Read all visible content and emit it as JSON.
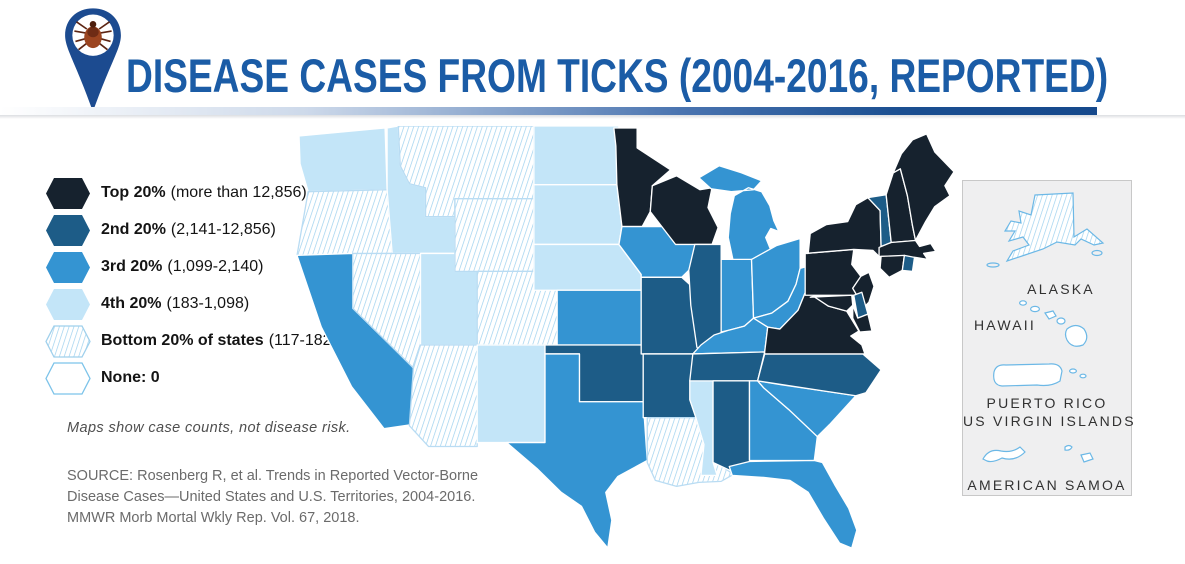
{
  "header": {
    "title": "DISEASE CASES FROM TICKS (2004-2016, REPORTED)",
    "icon": "tick-location-pin"
  },
  "legend": {
    "items": [
      {
        "id": "q1",
        "bold": "Top 20%",
        "range": "(more than 12,856)",
        "fill": "#16222e",
        "style": "solid"
      },
      {
        "id": "q2",
        "bold": "2nd 20%",
        "range": "(2,141-12,856)",
        "fill": "#1d5c87",
        "style": "solid"
      },
      {
        "id": "q3",
        "bold": "3rd 20%",
        "range": "(1,099-2,140)",
        "fill": "#3494d2",
        "style": "solid"
      },
      {
        "id": "q4",
        "bold": "4th 20%",
        "range": "(183-1,098)",
        "fill": "#c3e5f8",
        "style": "solid"
      },
      {
        "id": "q5",
        "bold": "Bottom 20% of states",
        "range": "(117-182)",
        "fill": "hatch",
        "style": "hatch"
      },
      {
        "id": "q0",
        "bold": "None: 0",
        "range": "",
        "fill": "#ffffff",
        "style": "outline"
      }
    ]
  },
  "note": "Maps show case counts, not disease risk.",
  "source_lines": [
    "SOURCE: Rosenberg R, et al. Trends in Reported Vector-Borne",
    "Disease Cases—United States and U.S. Territories, 2004-2016.",
    "MMWR Morb Mortal Wkly Rep. Vol. 67, 2018."
  ],
  "map": {
    "states": [
      {
        "id": "WA",
        "name": "Washington",
        "category": "q4"
      },
      {
        "id": "OR",
        "name": "Oregon",
        "category": "q5"
      },
      {
        "id": "CA",
        "name": "California",
        "category": "q3"
      },
      {
        "id": "ID",
        "name": "Idaho",
        "category": "q4"
      },
      {
        "id": "NV",
        "name": "Nevada",
        "category": "q5"
      },
      {
        "id": "UT",
        "name": "Utah",
        "category": "q4"
      },
      {
        "id": "AZ",
        "name": "Arizona",
        "category": "q5"
      },
      {
        "id": "MT",
        "name": "Montana",
        "category": "q5"
      },
      {
        "id": "WY",
        "name": "Wyoming",
        "category": "q5"
      },
      {
        "id": "CO",
        "name": "Colorado",
        "category": "q5"
      },
      {
        "id": "NM",
        "name": "New Mexico",
        "category": "q4"
      },
      {
        "id": "ND",
        "name": "North Dakota",
        "category": "q4"
      },
      {
        "id": "SD",
        "name": "South Dakota",
        "category": "q4"
      },
      {
        "id": "NE",
        "name": "Nebraska",
        "category": "q4"
      },
      {
        "id": "KS",
        "name": "Kansas",
        "category": "q3"
      },
      {
        "id": "OK",
        "name": "Oklahoma",
        "category": "q2"
      },
      {
        "id": "TX",
        "name": "Texas",
        "category": "q3"
      },
      {
        "id": "MN",
        "name": "Minnesota",
        "category": "q1"
      },
      {
        "id": "IA",
        "name": "Iowa",
        "category": "q3"
      },
      {
        "id": "MO",
        "name": "Missouri",
        "category": "q2"
      },
      {
        "id": "AR",
        "name": "Arkansas",
        "category": "q2"
      },
      {
        "id": "LA",
        "name": "Louisiana",
        "category": "q5"
      },
      {
        "id": "WI",
        "name": "Wisconsin",
        "category": "q1"
      },
      {
        "id": "IL",
        "name": "Illinois",
        "category": "q2"
      },
      {
        "id": "MS",
        "name": "Mississippi",
        "category": "q4"
      },
      {
        "id": "MI",
        "name": "Michigan",
        "category": "q3"
      },
      {
        "id": "IN",
        "name": "Indiana",
        "category": "q3"
      },
      {
        "id": "OH",
        "name": "Ohio",
        "category": "q3"
      },
      {
        "id": "KY",
        "name": "Kentucky",
        "category": "q3"
      },
      {
        "id": "TN",
        "name": "Tennessee",
        "category": "q2"
      },
      {
        "id": "AL",
        "name": "Alabama",
        "category": "q2"
      },
      {
        "id": "GA",
        "name": "Georgia",
        "category": "q3"
      },
      {
        "id": "FL",
        "name": "Florida",
        "category": "q3"
      },
      {
        "id": "SC",
        "name": "South Carolina",
        "category": "q3"
      },
      {
        "id": "NC",
        "name": "North Carolina",
        "category": "q2"
      },
      {
        "id": "WV",
        "name": "West Virginia",
        "category": "q3"
      },
      {
        "id": "VA",
        "name": "Virginia",
        "category": "q1"
      },
      {
        "id": "PA",
        "name": "Pennsylvania",
        "category": "q1"
      },
      {
        "id": "NY",
        "name": "New York",
        "category": "q1"
      },
      {
        "id": "NJ",
        "name": "New Jersey",
        "category": "q1"
      },
      {
        "id": "DE",
        "name": "Delaware",
        "category": "q2"
      },
      {
        "id": "MD",
        "name": "Maryland",
        "category": "q1"
      },
      {
        "id": "VT",
        "name": "Vermont",
        "category": "q2"
      },
      {
        "id": "NH",
        "name": "New Hampshire",
        "category": "q1"
      },
      {
        "id": "ME",
        "name": "Maine",
        "category": "q1"
      },
      {
        "id": "MA",
        "name": "Massachusetts",
        "category": "q1"
      },
      {
        "id": "CT",
        "name": "Connecticut",
        "category": "q1"
      },
      {
        "id": "RI",
        "name": "Rhode Island",
        "category": "q2"
      }
    ]
  },
  "territories": {
    "alaska_label": "ALASKA",
    "alaska_category": "q5",
    "hawaii_label": "HAWAII",
    "hawaii_category": "q0",
    "pr_label": "PUERTO RICO",
    "vi_label": "US VIRGIN ISLANDS",
    "pr_category": "q0",
    "as_label": "AMERICAN SAMOA",
    "as_category": "q0"
  },
  "colors": {
    "title_blue": "#1b5ca6",
    "hatch_line": "#a5d4ef",
    "hatch_border": "#9fd0ec",
    "none_border": "#7cc3e9",
    "territory_outline": "#6cb8e6",
    "state_border": "#ffffff",
    "panel_bg": "#efeff0"
  }
}
